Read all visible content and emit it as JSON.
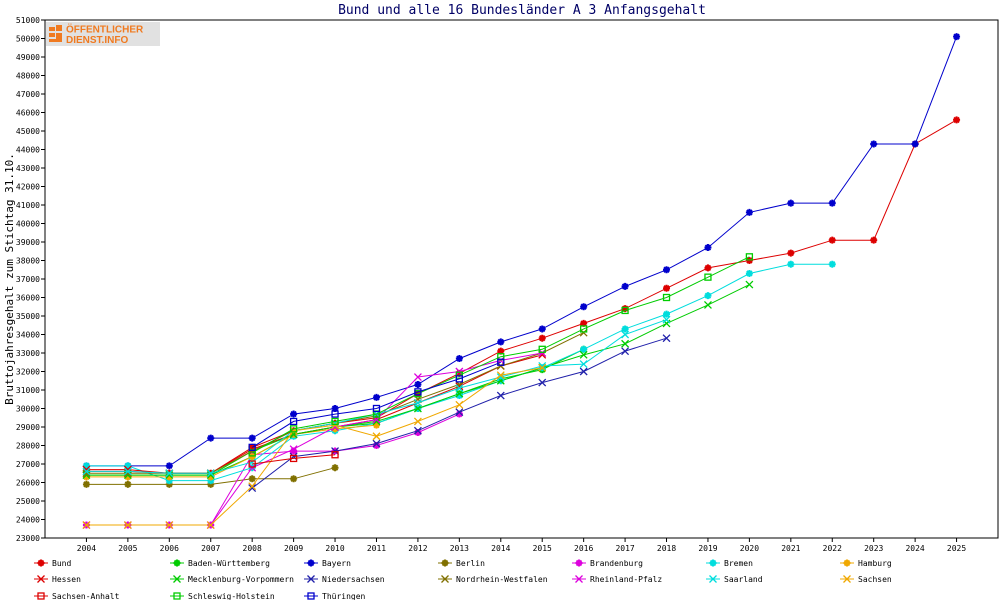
{
  "title": "Bund und alle 16 Bundesländer A 3 Anfangsgehalt",
  "logo": {
    "line1": "ÖFFENTLICHER",
    "line2": "DIENST.INFO"
  },
  "chart_data": {
    "type": "line",
    "title": "Bund und alle 16 Bundesländer A 3 Anfangsgehalt",
    "xlabel": "",
    "ylabel": "Bruttojahresgehalt zum Stichtag 31.10.",
    "xlim": [
      2003,
      2026
    ],
    "ylim": [
      23000,
      51000
    ],
    "x_ticks": [
      2004,
      2005,
      2006,
      2007,
      2008,
      2009,
      2010,
      2011,
      2012,
      2013,
      2014,
      2015,
      2016,
      2017,
      2018,
      2019,
      2020,
      2021,
      2022,
      2023,
      2024,
      2025
    ],
    "y_ticks": [
      23000,
      24000,
      25000,
      26000,
      27000,
      28000,
      29000,
      30000,
      31000,
      32000,
      33000,
      34000,
      35000,
      36000,
      37000,
      38000,
      39000,
      40000,
      41000,
      42000,
      43000,
      44000,
      45000,
      46000,
      47000,
      48000,
      49000,
      50000,
      51000
    ],
    "grid": false,
    "legend_position": "bottom",
    "series": [
      {
        "name": "Bund",
        "color": "#dd0000",
        "marker": "star",
        "x": [
          2004,
          2005,
          2006,
          2007,
          2008,
          2009,
          2010,
          2011,
          2012,
          2013,
          2014,
          2015,
          2016,
          2017,
          2018,
          2019,
          2020,
          2021,
          2022,
          2023,
          2024,
          2025
        ],
        "y": [
          26600,
          26600,
          26500,
          26500,
          27900,
          28800,
          29200,
          29500,
          30800,
          31900,
          33100,
          33800,
          34600,
          35400,
          36500,
          37600,
          38000,
          38400,
          39100,
          39100,
          44300,
          45600
        ]
      },
      {
        "name": "Baden-Württemberg",
        "color": "#00cc00",
        "marker": "star",
        "x": [
          2004,
          2005,
          2006,
          2007,
          2008,
          2009,
          2010,
          2011,
          2012,
          2013,
          2014,
          2015,
          2016
        ],
        "y": [
          26400,
          26400,
          26400,
          26400,
          27400,
          28600,
          29000,
          29200,
          30000,
          30800,
          31600,
          32100,
          33200
        ]
      },
      {
        "name": "Bayern",
        "color": "#0000cc",
        "marker": "star",
        "x": [
          2004,
          2005,
          2006,
          2007,
          2008,
          2009,
          2010,
          2011,
          2012,
          2013,
          2014,
          2015,
          2016,
          2017,
          2018,
          2019,
          2020,
          2021,
          2022,
          2023,
          2024,
          2025
        ],
        "y": [
          26900,
          26900,
          26900,
          28400,
          28400,
          29700,
          30000,
          30600,
          31300,
          32700,
          33600,
          34300,
          35500,
          36600,
          37500,
          38700,
          40600,
          41100,
          41100,
          44300,
          44300,
          50100
        ]
      },
      {
        "name": "Berlin",
        "color": "#807000",
        "marker": "star",
        "x": [
          2004,
          2005,
          2006,
          2007,
          2008,
          2009,
          2010
        ],
        "y": [
          25900,
          25900,
          25900,
          25900,
          26200,
          26200,
          26800
        ]
      },
      {
        "name": "Brandenburg",
        "color": "#dd00dd",
        "marker": "star",
        "x": [
          2004,
          2005,
          2006,
          2007,
          2008,
          2009,
          2010,
          2011,
          2012,
          2013
        ],
        "y": [
          23700,
          23700,
          23700,
          23700,
          27500,
          27700,
          27700,
          28000,
          28700,
          29700
        ]
      },
      {
        "name": "Bremen",
        "color": "#00dddd",
        "marker": "star",
        "x": [
          2004,
          2005,
          2006,
          2007,
          2008,
          2009,
          2010,
          2011,
          2012,
          2013,
          2014,
          2015,
          2016,
          2017,
          2018,
          2019,
          2020,
          2021,
          2022
        ],
        "y": [
          26900,
          26900,
          26100,
          26100,
          26800,
          28500,
          28800,
          29200,
          30000,
          30700,
          31500,
          32200,
          33200,
          34300,
          35100,
          36100,
          37300,
          37800,
          37800
        ]
      },
      {
        "name": "Hamburg",
        "color": "#f0a800",
        "marker": "star",
        "x": [
          2004,
          2005,
          2006,
          2007,
          2008,
          2009,
          2010,
          2011
        ],
        "y": [
          26300,
          26300,
          26300,
          26300,
          27400,
          28600,
          28900,
          29100
        ]
      },
      {
        "name": "Hessen",
        "color": "#dd0000",
        "marker": "x",
        "x": [
          2004,
          2005,
          2006,
          2007,
          2008,
          2009,
          2010,
          2011,
          2012,
          2013,
          2014,
          2015
        ],
        "y": [
          26700,
          26700,
          26500,
          26500,
          27800,
          28600,
          29000,
          29400,
          30300,
          31200,
          32300,
          32900
        ]
      },
      {
        "name": "Mecklenburg-Vorpommern",
        "color": "#00cc00",
        "marker": "x",
        "x": [
          2004,
          2005,
          2006,
          2007,
          2008,
          2009,
          2010,
          2011,
          2012,
          2013,
          2014,
          2015,
          2016,
          2017,
          2018,
          2019,
          2020
        ],
        "y": [
          26400,
          26400,
          26400,
          26400,
          27700,
          28600,
          29000,
          29300,
          30000,
          30800,
          31500,
          32200,
          32900,
          33500,
          34600,
          35600,
          36700
        ]
      },
      {
        "name": "Niedersachsen",
        "color": "#2020aa",
        "marker": "x",
        "x": [
          2008,
          2009,
          2010,
          2011,
          2012,
          2013,
          2014,
          2015,
          2016,
          2017,
          2018
        ],
        "y": [
          25700,
          27400,
          27700,
          28100,
          28800,
          29800,
          30700,
          31400,
          32000,
          33100,
          33800
        ]
      },
      {
        "name": "Nordrhein-Westfalen",
        "color": "#807000",
        "marker": "x",
        "x": [
          2004,
          2005,
          2006,
          2007,
          2008,
          2009,
          2010,
          2011,
          2012,
          2013,
          2014,
          2015,
          2016
        ],
        "y": [
          26500,
          26500,
          26500,
          26500,
          27700,
          28800,
          29200,
          29600,
          30500,
          31300,
          32300,
          33000,
          34100
        ]
      },
      {
        "name": "Rheinland-Pfalz",
        "color": "#dd00dd",
        "marker": "x",
        "x": [
          2004,
          2005,
          2006,
          2007,
          2008,
          2009,
          2010,
          2011,
          2012,
          2013,
          2014,
          2015
        ],
        "y": [
          23700,
          23700,
          23700,
          23700,
          26800,
          27800,
          29000,
          29400,
          31700,
          32000,
          32600,
          33000
        ]
      },
      {
        "name": "Saarland",
        "color": "#00dddd",
        "marker": "x",
        "x": [
          2004,
          2005,
          2006,
          2007,
          2008,
          2009,
          2010,
          2011,
          2012,
          2013,
          2014,
          2015,
          2016,
          2017,
          2018
        ],
        "y": [
          26600,
          26600,
          26500,
          26500,
          27100,
          28800,
          29200,
          29700,
          30300,
          31100,
          31700,
          32300,
          32400,
          34000,
          34800
        ]
      },
      {
        "name": "Sachsen",
        "color": "#f0a800",
        "marker": "x",
        "x": [
          2004,
          2005,
          2006,
          2007,
          2008,
          2009,
          2010,
          2011,
          2012,
          2013,
          2014,
          2015
        ],
        "y": [
          23700,
          23700,
          23700,
          23700,
          25800,
          28800,
          29100,
          28500,
          29300,
          30200,
          31800,
          32200
        ]
      },
      {
        "name": "Sachsen-Anhalt",
        "color": "#dd0000",
        "marker": "square",
        "x": [
          2008,
          2009,
          2010
        ],
        "y": [
          27000,
          27300,
          27500
        ]
      },
      {
        "name": "Schleswig-Holstein",
        "color": "#00cc00",
        "marker": "square",
        "x": [
          2008,
          2009,
          2010,
          2011,
          2012,
          2013,
          2014,
          2015,
          2016,
          2017,
          2018,
          2019,
          2020
        ],
        "y": [
          27600,
          28900,
          29300,
          29700,
          30800,
          31800,
          32800,
          33200,
          34300,
          35300,
          36000,
          37100,
          38200
        ]
      },
      {
        "name": "Thüringen",
        "color": "#0000cc",
        "marker": "square",
        "x": [
          2008,
          2009,
          2010,
          2011,
          2012,
          2013,
          2014
        ],
        "y": [
          27900,
          29300,
          29700,
          30000,
          30900,
          31600,
          32500
        ]
      }
    ]
  }
}
